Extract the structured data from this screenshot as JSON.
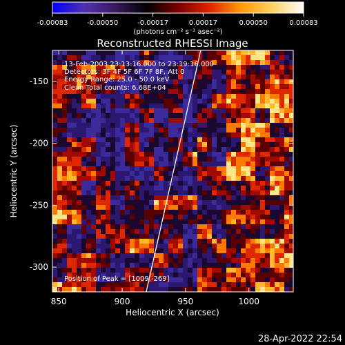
{
  "chart_data": {
    "type": "heatmap",
    "title": "Reconstructed RHESSI Image",
    "xlabel": "Heliocentric X (arcsec)",
    "ylabel": "Heliocentric Y (arcsec)",
    "xlim": [
      845,
      1035
    ],
    "ylim": [
      -320,
      -125
    ],
    "x_ticks": [
      850,
      900,
      950,
      1000
    ],
    "y_ticks": [
      -150,
      -200,
      -250,
      -300
    ],
    "colorbar": {
      "range": [
        -0.00083,
        0.00083
      ],
      "ticks": [
        "-0.00083",
        "-0.00050",
        "-0.00017",
        "0.00017",
        "0.00050",
        "0.00083"
      ],
      "unit_label": "(photons cm⁻² s⁻¹ asec⁻²)",
      "colors": [
        "#0000ff",
        "#5030b0",
        "#3a1a60",
        "#000000",
        "#7a0000",
        "#e02000",
        "#ff9a00",
        "#ffd060",
        "#ffffff"
      ]
    },
    "annotations": [
      "13-Feb-2003 23:13:16.000 to 23:19:16.000",
      "Detectors: 3F 4F 5F 6F 7F 8F, Att 0",
      "Energy Range: 25.0 - 50.0 keV",
      "Clean     Total counts: 6.68E+04"
    ],
    "peak_label": "Position of Peak = [1009,-269]",
    "peak": [
      1009,
      -269
    ],
    "limb_line": [
      [
        919,
        -320
      ],
      [
        962,
        -125
      ]
    ],
    "timestamp": "28-Apr-2022 22:54"
  }
}
